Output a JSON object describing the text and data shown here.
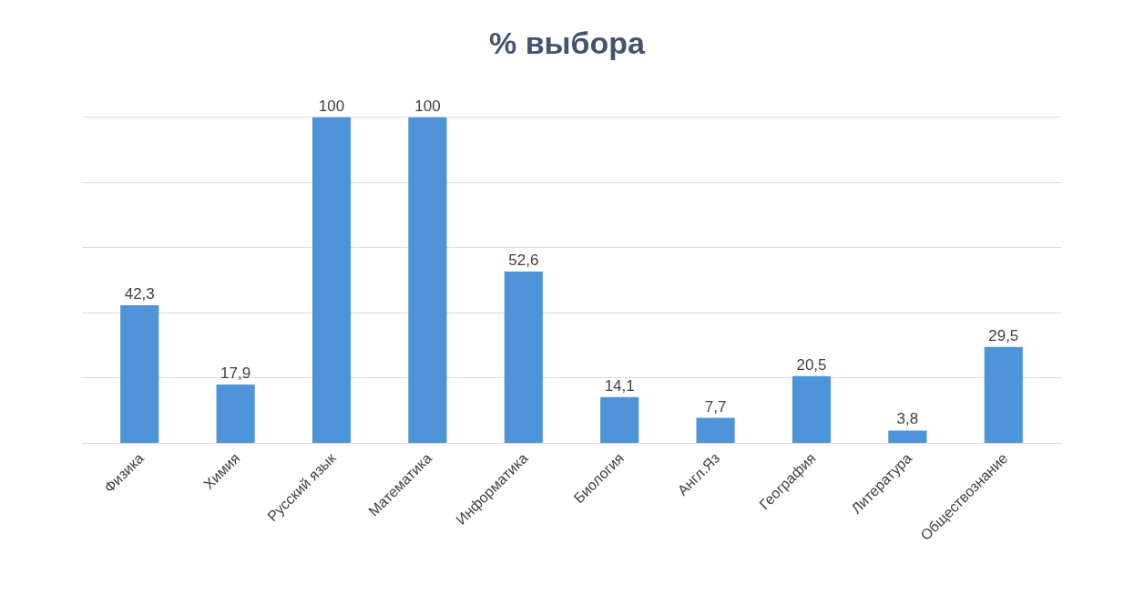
{
  "chart_data": {
    "type": "bar",
    "title": "% выбора",
    "categories": [
      "Физика",
      "Химия",
      "Русский язык",
      "Математика",
      "Информатика",
      "Биология",
      "Англ.Яз",
      "География",
      "Литература",
      "Обществознание"
    ],
    "values": [
      42.3,
      17.9,
      100,
      100,
      52.6,
      14.1,
      7.7,
      20.5,
      3.8,
      29.5
    ],
    "value_labels": [
      "42,3",
      "17,9",
      "100",
      "100",
      "52,6",
      "14,1",
      "7,7",
      "20,5",
      "3,8",
      "29,5"
    ],
    "color": "#4f93d8",
    "grid": "y",
    "tick_labels": "x"
  }
}
